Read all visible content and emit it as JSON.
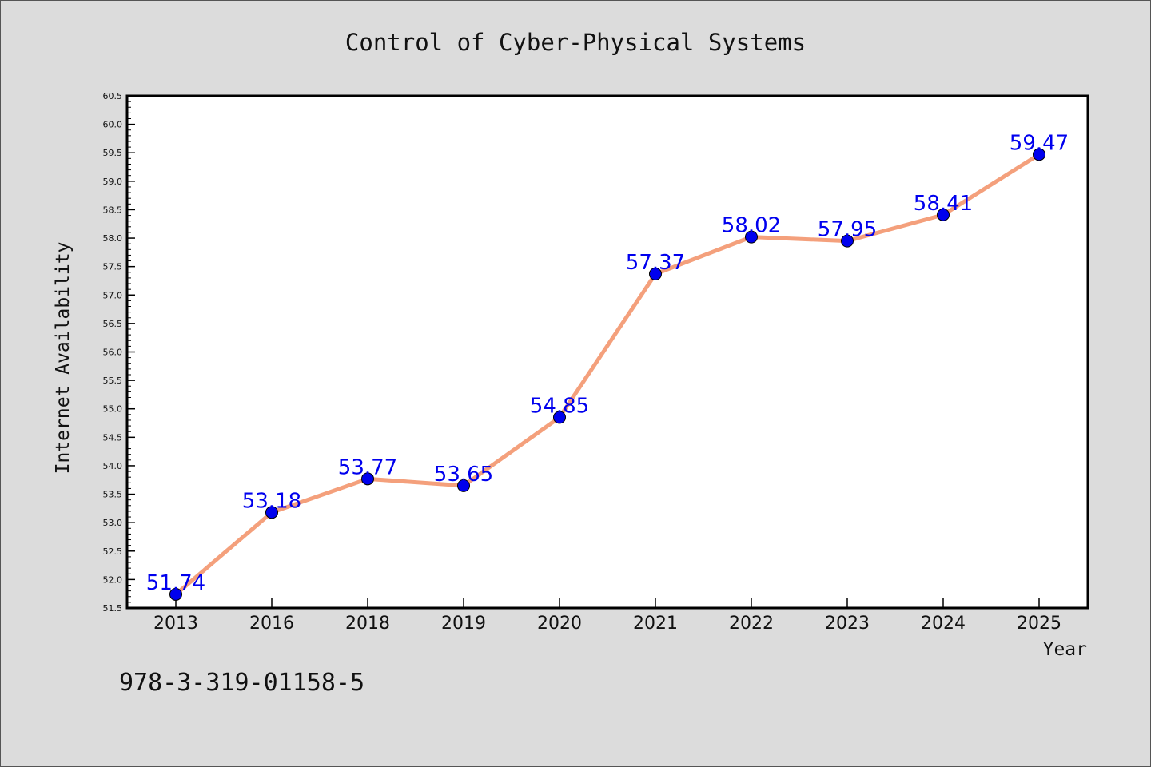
{
  "chart_data": {
    "type": "line",
    "title": "Control of Cyber-Physical Systems",
    "xlabel": "Year",
    "ylabel": "Internet Availability",
    "categories": [
      "2013",
      "2016",
      "2018",
      "2019",
      "2020",
      "2021",
      "2022",
      "2023",
      "2024",
      "2025"
    ],
    "series": [
      {
        "values": [
          51.74,
          53.18,
          53.77,
          53.65,
          54.85,
          57.37,
          58.02,
          57.95,
          58.41,
          59.47
        ],
        "data_labels": [
          "51.74",
          "53.18",
          "53.77",
          "53.65",
          "54.85",
          "57.37",
          "58.02",
          "57.95",
          "58.41",
          "59.47"
        ],
        "line_color": "#f4a07c",
        "marker_color": "#0000ee",
        "label_color": "#0000ee"
      }
    ],
    "ylim": [
      51.5,
      60.5
    ],
    "yticks": [
      "51.5",
      "52.0",
      "52.5",
      "53.0",
      "53.5",
      "54.0",
      "54.5",
      "55.0",
      "55.5",
      "56.0",
      "56.5",
      "57.0",
      "57.5",
      "58.0",
      "58.5",
      "59.0",
      "59.5",
      "60.0",
      "60.5"
    ],
    "grid": false,
    "legend": "none"
  },
  "footer_text": "978-3-319-01158-5"
}
